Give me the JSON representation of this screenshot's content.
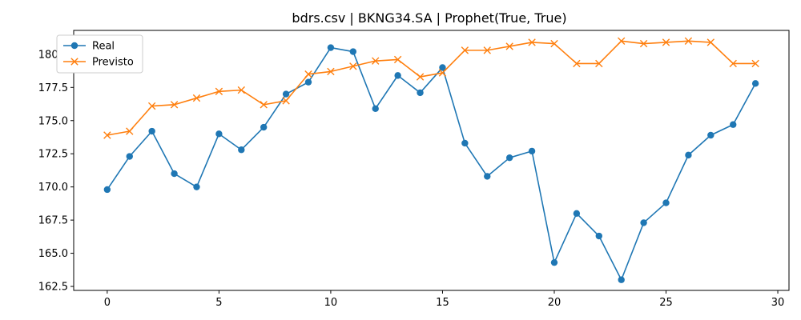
{
  "chart_data": {
    "type": "line",
    "title": "bdrs.csv | BKNG34.SA | Prophet(True, True)",
    "xlabel": "",
    "ylabel": "",
    "xlim": [
      -1.5,
      30.5
    ],
    "ylim": [
      162.2,
      181.8
    ],
    "xticks": [
      0,
      5,
      10,
      15,
      20,
      25,
      30
    ],
    "yticks": [
      162.5,
      165.0,
      167.5,
      170.0,
      172.5,
      175.0,
      177.5,
      180.0
    ],
    "grid": false,
    "legend_position": "top-left",
    "x": [
      0,
      1,
      2,
      3,
      4,
      5,
      6,
      7,
      8,
      9,
      10,
      11,
      12,
      13,
      14,
      15,
      16,
      17,
      18,
      19,
      20,
      21,
      22,
      23,
      24,
      25,
      26,
      27,
      28,
      29
    ],
    "series": [
      {
        "name": "Real",
        "color": "#1f77b4",
        "marker": "circle",
        "values": [
          169.8,
          172.3,
          174.2,
          171.0,
          170.0,
          174.0,
          172.8,
          174.5,
          177.0,
          177.9,
          180.5,
          180.2,
          175.9,
          178.4,
          177.1,
          179.0,
          173.3,
          170.8,
          172.2,
          172.7,
          164.3,
          168.0,
          166.3,
          163.0,
          167.3,
          168.8,
          172.4,
          173.9,
          174.7,
          177.8
        ]
      },
      {
        "name": "Previsto",
        "color": "#ff7f0e",
        "marker": "x",
        "values": [
          173.9,
          174.2,
          176.1,
          176.2,
          176.7,
          177.2,
          177.3,
          176.2,
          176.5,
          178.5,
          178.7,
          179.1,
          179.5,
          179.6,
          178.3,
          178.6,
          180.3,
          180.3,
          180.6,
          180.9,
          180.8,
          179.3,
          179.3,
          181.0,
          180.8,
          180.9,
          181.0,
          180.9,
          179.3,
          179.3
        ]
      }
    ]
  }
}
